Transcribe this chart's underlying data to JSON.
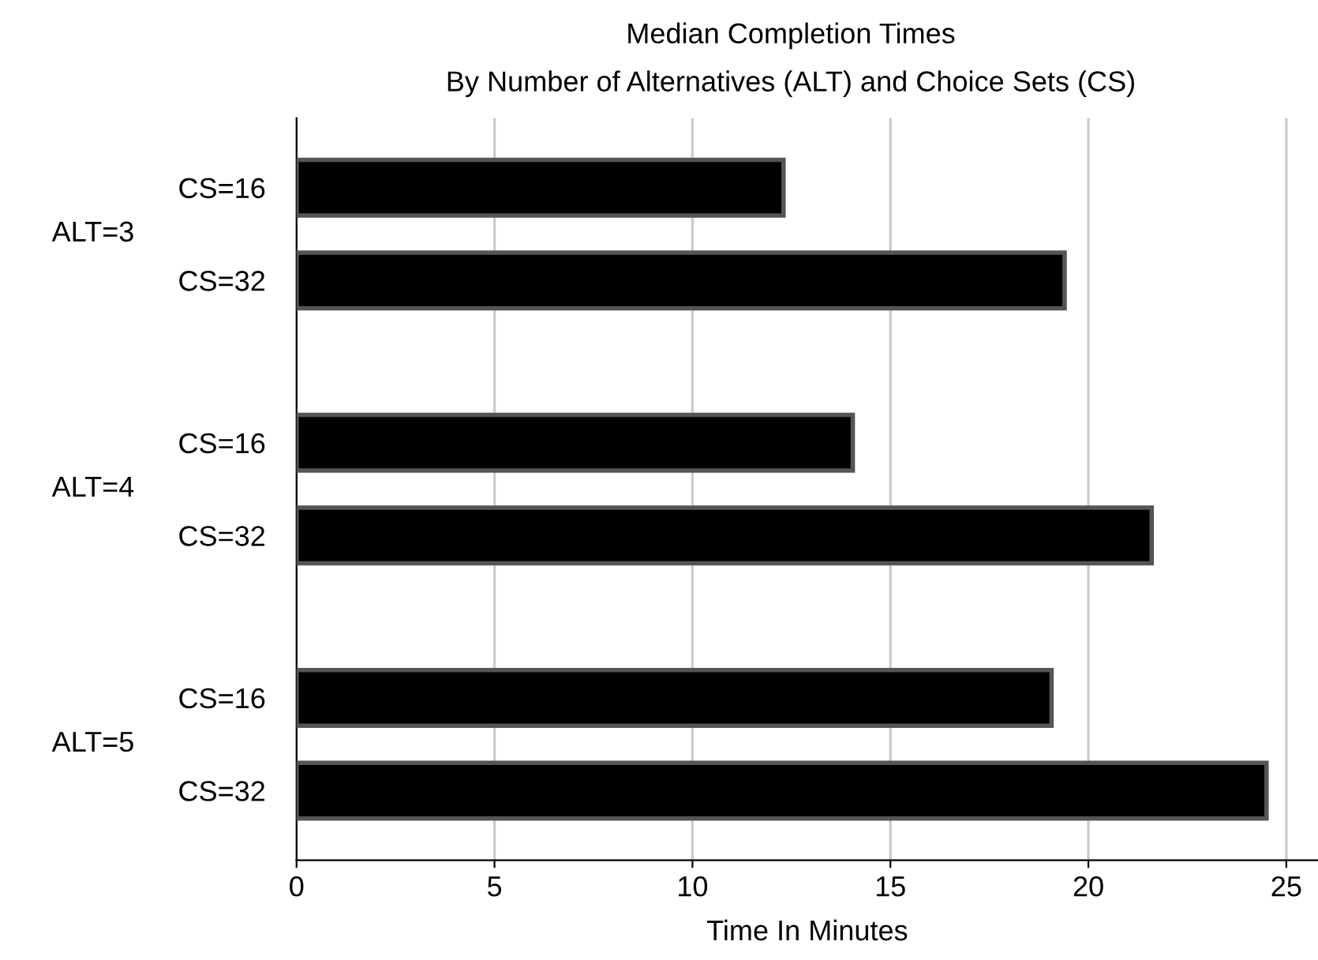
{
  "chart_data": {
    "type": "bar",
    "orientation": "horizontal",
    "title": "Median Completion Times",
    "subtitle": "By Number of Alternatives (ALT) and Choice Sets (CS)",
    "xlabel": "Time In Minutes",
    "categories": [
      "CS=16",
      "CS=32",
      "CS=16",
      "CS=32",
      "CS=16",
      "CS=32"
    ],
    "values": [
      12.3,
      19.4,
      14.05,
      21.6,
      19.07,
      24.5
    ],
    "color": "#000000",
    "annotations": [
      "ALT=3",
      "ALT=4",
      "ALT=5"
    ],
    "xlim": [
      0,
      25.8
    ],
    "xticks": [
      0,
      5,
      10,
      15,
      20,
      25
    ],
    "grid": "x",
    "legend": false
  }
}
